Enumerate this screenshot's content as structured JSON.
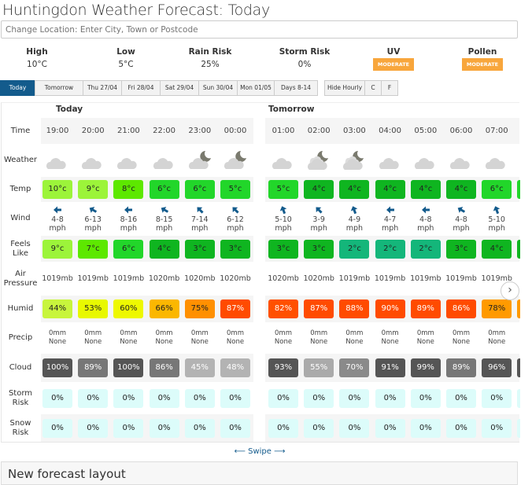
{
  "header": {
    "title": "Huntingdon Weather Forecast: Today",
    "search_placeholder": "Change Location: Enter City, Town or Postcode"
  },
  "summary": [
    {
      "label": "High",
      "value": "10°C"
    },
    {
      "label": "Low",
      "value": "5°C"
    },
    {
      "label": "Rain Risk",
      "value": "25%"
    },
    {
      "label": "Storm Risk",
      "value": "0%"
    },
    {
      "label": "UV",
      "badge": "MODERATE"
    },
    {
      "label": "Pollen",
      "badge": "MODERATE"
    }
  ],
  "badge_color": "#f8a63c",
  "tabs": [
    {
      "label": "Today",
      "active": true
    },
    {
      "label": "Tomorrow"
    },
    {
      "label": "Thu 27/04"
    },
    {
      "label": "Fri 28/04"
    },
    {
      "label": "Sat 29/04"
    },
    {
      "label": "Sun 30/04"
    },
    {
      "label": "Mon 01/05"
    },
    {
      "label": "Days 8-14"
    }
  ],
  "options": [
    {
      "label": "Hide Hourly"
    },
    {
      "label": "C"
    },
    {
      "label": "F"
    }
  ],
  "row_labels": [
    "Time",
    "Weather",
    "Temp",
    "Wind",
    "Feels Like",
    "Air Pressure",
    "Humid",
    "Precip",
    "Cloud",
    "Storm Risk",
    "Snow Risk"
  ],
  "days": [
    {
      "label": "Today",
      "hours": [
        {
          "time": "19:00",
          "icon": "cloud-icon",
          "temp": "10°c",
          "temp_color": "#9cf43a",
          "wind": "4-8",
          "wind_unit": "mph",
          "wind_deg": 270,
          "feels": "9°c",
          "feels_color": "#9cf43a",
          "pressure": "1019mb",
          "humid": "44%",
          "humid_color": "#c8f53c",
          "precip": "0mm",
          "precip_type": "None",
          "cloud": "100%",
          "cloud_color": "#555555",
          "storm": "0%",
          "snow": "0%"
        },
        {
          "time": "20:00",
          "icon": "cloud-icon",
          "temp": "9°c",
          "temp_color": "#9cf43a",
          "wind": "6-13",
          "wind_unit": "mph",
          "wind_deg": 300,
          "feels": "7°c",
          "feels_color": "#5de800",
          "pressure": "1019mb",
          "humid": "53%",
          "humid_color": "#e8f800",
          "precip": "0mm",
          "precip_type": "None",
          "cloud": "89%",
          "cloud_color": "#777777",
          "storm": "0%",
          "snow": "0%"
        },
        {
          "time": "21:00",
          "icon": "cloud-icon",
          "temp": "8°c",
          "temp_color": "#5de800",
          "wind": "8-16",
          "wind_unit": "mph",
          "wind_deg": 270,
          "feels": "6°c",
          "feels_color": "#22d62a",
          "pressure": "1019mb",
          "humid": "60%",
          "humid_color": "#eef800",
          "precip": "0mm",
          "precip_type": "None",
          "cloud": "100%",
          "cloud_color": "#555555",
          "storm": "0%",
          "snow": "0%"
        },
        {
          "time": "22:00",
          "icon": "cloud-icon",
          "temp": "6°c",
          "temp_color": "#22d62a",
          "wind": "8-15",
          "wind_unit": "mph",
          "wind_deg": 300,
          "feels": "4°c",
          "feels_color": "#0fb520",
          "pressure": "1020mb",
          "humid": "66%",
          "humid_color": "#fbb700",
          "precip": "0mm",
          "precip_type": "None",
          "cloud": "86%",
          "cloud_color": "#777777",
          "storm": "0%",
          "snow": "0%"
        },
        {
          "time": "23:00",
          "icon": "moon-cloud-icon",
          "temp": "6°c",
          "temp_color": "#22d62a",
          "wind": "7-14",
          "wind_unit": "mph",
          "wind_deg": 315,
          "feels": "3°c",
          "feels_color": "#0fb520",
          "pressure": "1020mb",
          "humid": "75%",
          "humid_color": "#ff9000",
          "precip": "0mm",
          "precip_type": "None",
          "cloud": "45%",
          "cloud_color": "#b3b3b3",
          "storm": "0%",
          "snow": "0%"
        },
        {
          "time": "00:00",
          "icon": "moon-cloud-icon",
          "temp": "5°c",
          "temp_color": "#22d62a",
          "wind": "6-12",
          "wind_unit": "mph",
          "wind_deg": 315,
          "feels": "3°c",
          "feels_color": "#0fb520",
          "pressure": "1020mb",
          "humid": "87%",
          "humid_color": "#ff4b00",
          "precip": "0mm",
          "precip_type": "None",
          "cloud": "48%",
          "cloud_color": "#b3b3b3",
          "storm": "0%",
          "snow": "0%"
        }
      ]
    },
    {
      "label": "Tomorrow",
      "hours": [
        {
          "time": "01:00",
          "icon": "cloud-icon",
          "temp": "5°c",
          "temp_color": "#22d62a",
          "wind": "5-10",
          "wind_unit": "mph",
          "wind_deg": 340,
          "feels": "3°c",
          "feels_color": "#0fb520",
          "pressure": "1020mb",
          "humid": "82%",
          "humid_color": "#ff5000",
          "precip": "0mm",
          "precip_type": "None",
          "cloud": "93%",
          "cloud_color": "#555555",
          "storm": "0%",
          "snow": "0%"
        },
        {
          "time": "02:00",
          "icon": "moon-clouds-icon",
          "temp": "4°c",
          "temp_color": "#0fb520",
          "wind": "3-9",
          "wind_unit": "mph",
          "wind_deg": 315,
          "feels": "3°c",
          "feels_color": "#0fb520",
          "pressure": "1020mb",
          "humid": "87%",
          "humid_color": "#ff4b00",
          "precip": "0mm",
          "precip_type": "None",
          "cloud": "55%",
          "cloud_color": "#aaaaaa",
          "storm": "0%",
          "snow": "0%"
        },
        {
          "time": "03:00",
          "icon": "moon-clouds-icon",
          "temp": "4°c",
          "temp_color": "#0fb520",
          "wind": "4-9",
          "wind_unit": "mph",
          "wind_deg": 340,
          "feels": "2°c",
          "feels_color": "#14b67a",
          "pressure": "1019mb",
          "humid": "88%",
          "humid_color": "#ff4b00",
          "precip": "0mm",
          "precip_type": "None",
          "cloud": "70%",
          "cloud_color": "#8a8a8a",
          "storm": "0%",
          "snow": "0%"
        },
        {
          "time": "04:00",
          "icon": "cloud-icon",
          "temp": "4°c",
          "temp_color": "#0fb520",
          "wind": "4-7",
          "wind_unit": "mph",
          "wind_deg": 270,
          "feels": "2°c",
          "feels_color": "#14b67a",
          "pressure": "1019mb",
          "humid": "90%",
          "humid_color": "#ff4b00",
          "precip": "0mm",
          "precip_type": "None",
          "cloud": "91%",
          "cloud_color": "#555555",
          "storm": "0%",
          "snow": "0%"
        },
        {
          "time": "05:00",
          "icon": "cloud-icon",
          "temp": "4°c",
          "temp_color": "#0fb520",
          "wind": "4-8",
          "wind_unit": "mph",
          "wind_deg": 270,
          "feels": "2°c",
          "feels_color": "#14b67a",
          "pressure": "1019mb",
          "humid": "89%",
          "humid_color": "#ff4b00",
          "precip": "0mm",
          "precip_type": "None",
          "cloud": "99%",
          "cloud_color": "#555555",
          "storm": "0%",
          "snow": "0%"
        },
        {
          "time": "06:00",
          "icon": "cloud-icon",
          "temp": "4°c",
          "temp_color": "#0fb520",
          "wind": "4-8",
          "wind_unit": "mph",
          "wind_deg": 300,
          "feels": "3°c",
          "feels_color": "#0fb520",
          "pressure": "1019mb",
          "humid": "86%",
          "humid_color": "#ff4b00",
          "precip": "0mm",
          "precip_type": "None",
          "cloud": "89%",
          "cloud_color": "#777777",
          "storm": "0%",
          "snow": "0%"
        },
        {
          "time": "07:00",
          "icon": "cloud-icon",
          "temp": "6°c",
          "temp_color": "#22d62a",
          "wind": "5-10",
          "wind_unit": "mph",
          "wind_deg": 340,
          "feels": "4°c",
          "feels_color": "#0fb520",
          "pressure": "1019mb",
          "humid": "78%",
          "humid_color": "#ff9a00",
          "precip": "0mm",
          "precip_type": "None",
          "cloud": "96%",
          "cloud_color": "#555555",
          "storm": "0%",
          "snow": "0%"
        }
      ]
    }
  ],
  "risk_color": "#dcfcfa",
  "swipe": "⟵ Swipe ⟶",
  "footer": "New forecast layout"
}
